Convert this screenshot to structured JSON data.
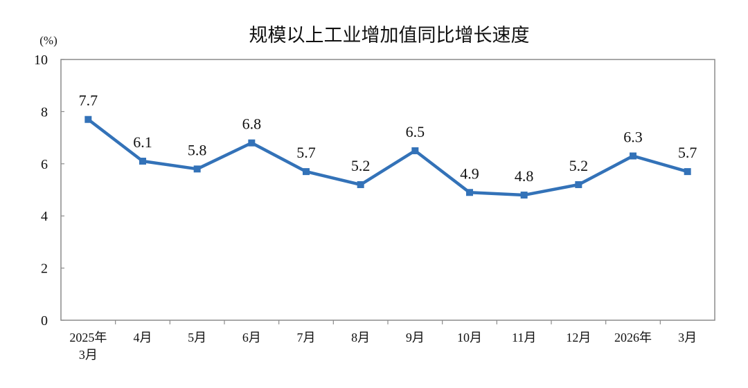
{
  "chart_data": {
    "type": "line",
    "title": "规模以上工业增加值同比增长速度",
    "unit_label": "(%)",
    "xlabel": "",
    "ylabel": "",
    "ylim": [
      0,
      10
    ],
    "y_ticks": [
      "0",
      "2",
      "4",
      "6",
      "8",
      "10"
    ],
    "grid": false,
    "legend": "none",
    "categories": [
      [
        "2025年",
        "3月"
      ],
      [
        "4月"
      ],
      [
        "5月"
      ],
      [
        "6月"
      ],
      [
        "7月"
      ],
      [
        "8月"
      ],
      [
        "9月"
      ],
      [
        "10月"
      ],
      [
        "11月"
      ],
      [
        "12月"
      ],
      [
        "2026年"
      ],
      [
        "3月"
      ]
    ],
    "series": [
      {
        "values": [
          7.7,
          6.1,
          5.8,
          6.8,
          5.7,
          5.2,
          6.5,
          4.9,
          4.8,
          5.2,
          6.3,
          5.7
        ],
        "labels": [
          "7.7",
          "6.1",
          "5.8",
          "6.8",
          "5.7",
          "5.2",
          "6.5",
          "4.9",
          "4.8",
          "5.2",
          "6.3",
          "5.7"
        ],
        "color": "#3372b8",
        "marker": "square"
      }
    ],
    "colors": {
      "line": "#3372b8",
      "axis": "#8a8a8a",
      "text": "#111111"
    }
  }
}
